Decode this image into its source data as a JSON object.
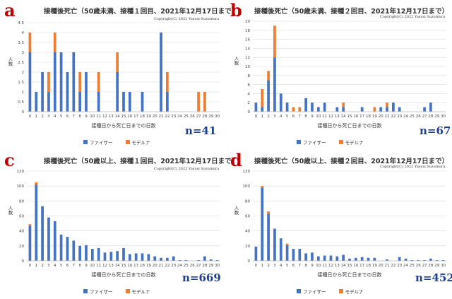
{
  "colors": {
    "pfizer": "#4472c4",
    "moderna": "#ed7d31",
    "grid": "#d9d9d9",
    "n_label": "#1f3f8f",
    "panel_letter": "#c00000"
  },
  "legend": {
    "pfizer": "ファイザー",
    "moderna": "モデルナ"
  },
  "copyright": "Copyright(C) 2022 Yasusi Suzumura",
  "chart_data": [
    {
      "type": "bar",
      "panel": "a",
      "title": "接種後死亡（50歳未満、接種１回目、2021年12月17日まで）",
      "n_label": "n=41",
      "ylabel": "人数",
      "xlabel": "接種日から死亡日までの日数",
      "ylim": [
        0,
        4.5
      ],
      "yticks": [
        "0",
        "0.5",
        "1",
        "1.5",
        "2",
        "2.5",
        "3",
        "3.5",
        "4",
        "4.5"
      ],
      "ytick_values": [
        0,
        0.5,
        1,
        1.5,
        2,
        2.5,
        3,
        3.5,
        4,
        4.5
      ],
      "categories": [
        "0",
        "1",
        "2",
        "3",
        "4",
        "5",
        "6",
        "7",
        "8",
        "9",
        "10",
        "11",
        "12",
        "13",
        "14",
        "15",
        "16",
        "17",
        "18",
        "19",
        "20",
        "21",
        "22",
        "23",
        "24",
        "25",
        "26",
        "27",
        "28",
        "29",
        "30"
      ],
      "stacked": true,
      "series": [
        {
          "name": "ファイザー",
          "values": [
            3,
            1,
            2,
            1,
            3,
            3,
            2,
            3,
            1,
            2,
            0,
            1,
            0,
            0,
            2,
            1,
            1,
            0,
            1,
            0,
            0,
            4,
            1,
            0,
            0,
            0,
            0,
            0,
            0,
            0,
            0
          ]
        },
        {
          "name": "モデルナ",
          "values": [
            1,
            0,
            0,
            1,
            1,
            0,
            0,
            0,
            1,
            0,
            0,
            1,
            0,
            0,
            1,
            0,
            0,
            0,
            0,
            0,
            0,
            0,
            1,
            0,
            0,
            0,
            0,
            1,
            1,
            0,
            0
          ]
        }
      ]
    },
    {
      "type": "bar",
      "panel": "b",
      "title": "接種後死亡（50歳未満、接種２回目、2021年12月17日まで）",
      "n_label": "n=67",
      "ylabel": "人数",
      "xlabel": "接種日から死亡日までの日数",
      "ylim": [
        0,
        20
      ],
      "yticks": [
        "0",
        "2",
        "4",
        "6",
        "8",
        "10",
        "12",
        "14",
        "16",
        "18",
        "20"
      ],
      "ytick_values": [
        0,
        2,
        4,
        6,
        8,
        10,
        12,
        14,
        16,
        18,
        20
      ],
      "categories": [
        "0",
        "1",
        "2",
        "3",
        "4",
        "5",
        "6",
        "7",
        "8",
        "9",
        "10",
        "11",
        "12",
        "13",
        "14",
        "15",
        "16",
        "17",
        "18",
        "19",
        "20",
        "21",
        "22",
        "23",
        "24",
        "25",
        "26",
        "27",
        "28",
        "29",
        "30"
      ],
      "stacked": true,
      "series": [
        {
          "name": "ファイザー",
          "values": [
            2,
            1,
            7,
            12,
            4,
            2,
            0,
            0,
            3,
            2,
            1,
            2,
            0,
            1,
            1,
            0,
            0,
            1,
            0,
            0,
            1,
            1,
            2,
            1,
            0,
            0,
            0,
            1,
            2,
            0,
            0
          ]
        },
        {
          "name": "モデルナ",
          "values": [
            0,
            4,
            2,
            7,
            0,
            0,
            1,
            1,
            0,
            0,
            0,
            0,
            0,
            0,
            1,
            0,
            0,
            0,
            0,
            1,
            0,
            1,
            0,
            0,
            0,
            0,
            0,
            0,
            0,
            0,
            0
          ]
        }
      ]
    },
    {
      "type": "bar",
      "panel": "c",
      "title": "接種後死亡（50歳以上、接種１回目、2021年12月17日まで）",
      "n_label": "n=669",
      "ylabel": "人数",
      "xlabel": "接種日から死亡日までの日数",
      "ylim": [
        0,
        120
      ],
      "yticks": [
        "0",
        "20",
        "40",
        "60",
        "80",
        "100",
        "120"
      ],
      "ytick_values": [
        0,
        20,
        40,
        60,
        80,
        100,
        120
      ],
      "categories": [
        "0",
        "1",
        "2",
        "3",
        "4",
        "5",
        "6",
        "7",
        "8",
        "9",
        "10",
        "11",
        "12",
        "13",
        "14",
        "15",
        "16",
        "17",
        "18",
        "19",
        "20",
        "21",
        "22",
        "23",
        "24",
        "25",
        "26",
        "27",
        "28",
        "29",
        "30"
      ],
      "stacked": true,
      "series": [
        {
          "name": "ファイザー",
          "values": [
            47,
            102,
            73,
            58,
            53,
            35,
            32,
            27,
            20,
            21,
            16,
            17,
            11,
            12,
            13,
            17,
            9,
            10,
            10,
            9,
            6,
            4,
            4,
            6,
            1,
            1,
            0,
            1,
            6,
            2,
            1
          ]
        },
        {
          "name": "モデルナ",
          "values": [
            2,
            3,
            0,
            0,
            0,
            0,
            0,
            0,
            0,
            0,
            0,
            0,
            0,
            0,
            0,
            0,
            0,
            0,
            0,
            0,
            0,
            0,
            0,
            0,
            0,
            0,
            0,
            0,
            0,
            0,
            0
          ]
        }
      ]
    },
    {
      "type": "bar",
      "panel": "d",
      "title": "接種後死亡（50歳以上、接種２回目、2021年12月17日まで）",
      "n_label": "n=452",
      "ylabel": "人数",
      "xlabel": "接種日から死亡日までの日数",
      "ylim": [
        0,
        120
      ],
      "yticks": [
        "0",
        "20",
        "40",
        "60",
        "80",
        "100",
        "120"
      ],
      "ytick_values": [
        0,
        20,
        40,
        60,
        80,
        100,
        120
      ],
      "categories": [
        "0",
        "1",
        "2",
        "3",
        "4",
        "5",
        "6",
        "7",
        "8",
        "9",
        "10",
        "11",
        "12",
        "13",
        "14",
        "15",
        "16",
        "17",
        "18",
        "19",
        "20",
        "21",
        "22",
        "23",
        "24",
        "25",
        "26",
        "27",
        "28",
        "29",
        "30"
      ],
      "stacked": true,
      "series": [
        {
          "name": "ファイザー",
          "values": [
            19,
            98,
            63,
            43,
            30,
            21,
            16,
            16,
            10,
            11,
            6,
            7,
            7,
            6,
            8,
            3,
            4,
            5,
            4,
            4,
            0,
            2,
            0,
            5,
            3,
            1,
            1,
            1,
            3,
            1,
            1
          ]
        },
        {
          "name": "モデルナ",
          "values": [
            0,
            2,
            3,
            0,
            0,
            2,
            0,
            0,
            0,
            0,
            0,
            0,
            0,
            0,
            0,
            0,
            0,
            0,
            0,
            0,
            0,
            0,
            0,
            0,
            0,
            0,
            0,
            0,
            0,
            0,
            0
          ]
        }
      ]
    }
  ]
}
